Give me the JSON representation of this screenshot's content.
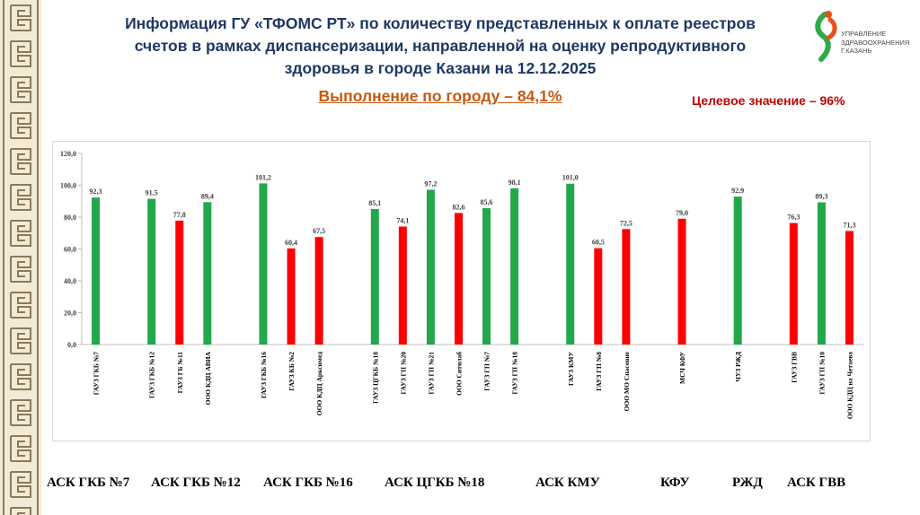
{
  "header": {
    "title_lines": [
      "Информация ГУ «ТФОМС РТ» по количеству представленных к оплате реестров",
      "счетов в рамках диспансеризации, направленной на оценку репродуктивного",
      "здоровья в городе Казани на 12.12.2025"
    ],
    "subtitle": "Выполнение по городу – 84,1%",
    "target": "Целевое значение – 96%"
  },
  "logo": {
    "line1": "УПРАВЛЕНИЕ",
    "line2": "ЗДРАВООХРАНЕНИЯ",
    "line3": "Г.КАЗАНЬ"
  },
  "colors": {
    "green": "#22a84a",
    "red": "#ff0000",
    "title": "#1f3864",
    "accent": "#c55a11",
    "target": "#c00000"
  },
  "chart_data": {
    "type": "bar",
    "ylim": [
      0,
      120
    ],
    "yticks": [
      "0,0",
      "20,0",
      "40,0",
      "60,0",
      "80,0",
      "100,0",
      "120,0"
    ],
    "grid": false,
    "bars": [
      {
        "label": "ГАУЗ ГКБ №7",
        "value": 92.3,
        "value_label": "92,3",
        "color": "green",
        "slot": 0
      },
      {
        "label": "ГАУЗ ГКБ №12",
        "value": 91.5,
        "value_label": "91,5",
        "color": "green",
        "slot": 2
      },
      {
        "label": "ГАУЗ ГБ №11",
        "value": 77.8,
        "value_label": "77,8",
        "color": "red",
        "slot": 3
      },
      {
        "label": "ООО КДЦ АВИА",
        "value": 89.4,
        "value_label": "89,4",
        "color": "green",
        "slot": 4
      },
      {
        "label": "ГАУЗ ГКБ №16",
        "value": 101.2,
        "value_label": "101,2",
        "color": "green",
        "slot": 6
      },
      {
        "label": "ГАУЗ КБ №2",
        "value": 60.4,
        "value_label": "60,4",
        "color": "red",
        "slot": 7
      },
      {
        "label": "ООО КДЦ Арксимед",
        "value": 67.5,
        "value_label": "67,5",
        "color": "red",
        "slot": 8
      },
      {
        "label": "ГАУЗ ЦГКБ №18",
        "value": 85.1,
        "value_label": "85,1",
        "color": "green",
        "slot": 10
      },
      {
        "label": "ГАУЗ ГП №20",
        "value": 74.1,
        "value_label": "74,1",
        "color": "red",
        "slot": 11
      },
      {
        "label": "ГАУЗ ГП №21",
        "value": 97.2,
        "value_label": "97,2",
        "color": "green",
        "slot": 12
      },
      {
        "label": "ООО Ситилаб",
        "value": 82.6,
        "value_label": "82,6",
        "color": "red",
        "slot": 13
      },
      {
        "label": "ГАУЗ ГП №7",
        "value": 85.6,
        "value_label": "85,6",
        "color": "green",
        "slot": 14
      },
      {
        "label": "ГАУЗ ГП №18",
        "value": 98.1,
        "value_label": "98,1",
        "color": "green",
        "slot": 15
      },
      {
        "label": "ГАУЗ КМУ",
        "value": 101.0,
        "value_label": "101,0",
        "color": "green",
        "slot": 17
      },
      {
        "label": "ГАУЗ ГП №8",
        "value": 60.5,
        "value_label": "60,5",
        "color": "red",
        "slot": 18
      },
      {
        "label": "ООО МО Спасение",
        "value": 72.5,
        "value_label": "72,5",
        "color": "red",
        "slot": 19
      },
      {
        "label": "МСЧ КФУ",
        "value": 79.0,
        "value_label": "79,0",
        "color": "red",
        "slot": 21
      },
      {
        "label": "ЧУЗ РЖД",
        "value": 92.9,
        "value_label": "92,9",
        "color": "green",
        "slot": 23
      },
      {
        "label": "ГАУЗ ГВВ",
        "value": 76.3,
        "value_label": "76,3",
        "color": "red",
        "slot": 25
      },
      {
        "label": "ГАУЗ ГП №10",
        "value": 89.3,
        "value_label": "89,3",
        "color": "green",
        "slot": 26
      },
      {
        "label": "ООО КДЦ на Четаева",
        "value": 71.3,
        "value_label": "71,3",
        "color": "red",
        "slot": 27
      }
    ],
    "groups": [
      "АСК ГКБ №7",
      "АСК ГКБ №12",
      "АСК ГКБ №16",
      "АСК ЦГКБ №18",
      "АСК КМУ",
      "КФУ",
      "РЖД",
      "АСК ГВВ"
    ]
  }
}
